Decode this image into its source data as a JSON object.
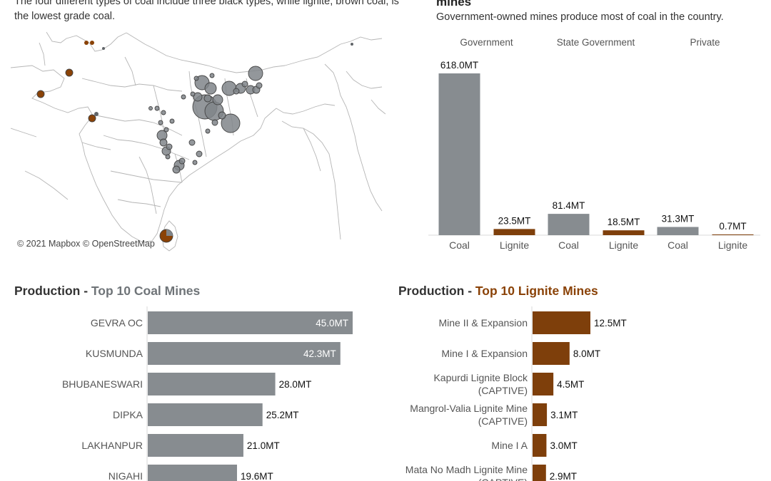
{
  "intro_text": "The four different types of coal include three black types, while lignite, brown coal, is the lowest grade coal.",
  "ownership": {
    "title": "mines",
    "subtitle": "Government-owned mines produce most of coal in the country."
  },
  "map": {
    "copyright": "© 2021 Mapbox © OpenStreetMap",
    "colors": {
      "coal": "#808589",
      "lignite": "#8a4207"
    }
  },
  "coal_section": {
    "prefix": "Production - ",
    "accent": "Top 10 Coal Mines"
  },
  "lignite_section": {
    "prefix": "Production - ",
    "accent": "Top 10 Lignite Mines"
  },
  "colors": {
    "coal": "#878c90",
    "lignite": "#7e3f0b"
  },
  "chart_data": [
    {
      "type": "bar",
      "groups": [
        "Government",
        "State Government",
        "Private"
      ],
      "categories": [
        "Coal",
        "Lignite",
        "Coal",
        "Lignite",
        "Coal",
        "Lignite"
      ],
      "values": [
        618.0,
        23.5,
        81.4,
        18.5,
        31.3,
        0.7
      ],
      "labels": [
        "618.0MT",
        "23.5MT",
        "81.4MT",
        "18.5MT",
        "31.3MT",
        "0.7MT"
      ],
      "bar_types": [
        "coal",
        "lignite",
        "coal",
        "lignite",
        "coal",
        "lignite"
      ],
      "ylim": [
        0,
        618
      ]
    },
    {
      "type": "bar",
      "orientation": "horizontal",
      "categories": [
        "GEVRA OC",
        "KUSMUNDA",
        "BHUBANESWARI",
        "DIPKA",
        "LAKHANPUR",
        "NIGAHI"
      ],
      "values": [
        45.0,
        42.3,
        28.0,
        25.2,
        21.0,
        19.6
      ],
      "labels": [
        "45.0MT",
        "42.3MT",
        "28.0MT",
        "25.2MT",
        "21.0MT",
        "19.6MT"
      ],
      "xlim": [
        0,
        45
      ]
    },
    {
      "type": "bar",
      "orientation": "horizontal",
      "categories": [
        [
          "Mine II & Expansion"
        ],
        [
          "Mine I & Expansion"
        ],
        [
          "Kapurdi Lignite Block",
          "(CAPTIVE)"
        ],
        [
          "Mangrol-Valia Lignite Mine",
          "(CAPTIVE)"
        ],
        [
          "Mine I A"
        ],
        [
          "Mata No Madh Lignite Mine",
          "(CAPTIVE)"
        ]
      ],
      "values": [
        12.5,
        8.0,
        4.5,
        3.1,
        3.0,
        2.9
      ],
      "labels": [
        "12.5MT",
        "8.0MT",
        "4.5MT",
        "3.1MT",
        "3.0MT",
        "2.9MT"
      ],
      "xlim": [
        0,
        12.5
      ]
    }
  ]
}
